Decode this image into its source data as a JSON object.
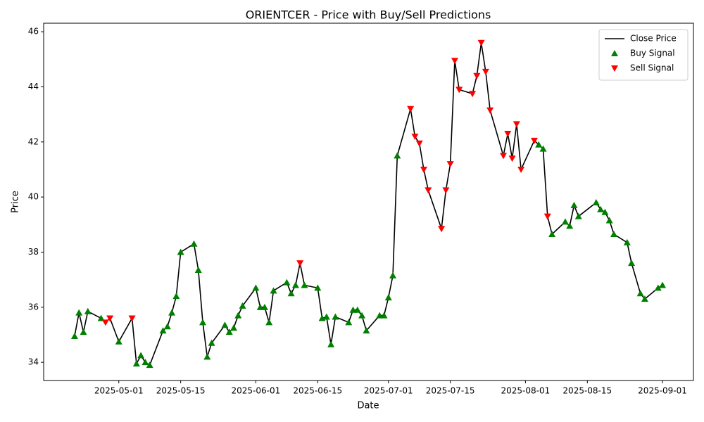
{
  "chart_data": {
    "type": "line",
    "title": "ORIENTCER - Price with Buy/Sell Predictions",
    "x_label": "Date",
    "y_label": "Price",
    "legend": "upper right",
    "xlim": [
      "2025-04-14",
      "2025-09-08"
    ],
    "xticks": [
      "2025-05-01",
      "2025-05-15",
      "2025-06-01",
      "2025-06-15",
      "2025-07-01",
      "2025-07-15",
      "2025-08-01",
      "2025-08-15",
      "2025-09-01"
    ],
    "ylim": [
      33.34,
      46.31
    ],
    "yticks": [
      34,
      36,
      38,
      40,
      42,
      44,
      46
    ],
    "x": [
      "2025-04-21",
      "2025-04-22",
      "2025-04-23",
      "2025-04-24",
      "2025-04-27",
      "2025-04-28",
      "2025-04-29",
      "2025-05-01",
      "2025-05-04",
      "2025-05-05",
      "2025-05-06",
      "2025-05-07",
      "2025-05-08",
      "2025-05-11",
      "2025-05-12",
      "2025-05-13",
      "2025-05-14",
      "2025-05-15",
      "2025-05-18",
      "2025-05-19",
      "2025-05-20",
      "2025-05-21",
      "2025-05-22",
      "2025-05-25",
      "2025-05-26",
      "2025-05-27",
      "2025-05-28",
      "2025-05-29",
      "2025-06-01",
      "2025-06-02",
      "2025-06-03",
      "2025-06-04",
      "2025-06-05",
      "2025-06-08",
      "2025-06-09",
      "2025-06-10",
      "2025-06-11",
      "2025-06-12",
      "2025-06-15",
      "2025-06-16",
      "2025-06-17",
      "2025-06-18",
      "2025-06-19",
      "2025-06-22",
      "2025-06-23",
      "2025-06-24",
      "2025-06-25",
      "2025-06-26",
      "2025-06-29",
      "2025-06-30",
      "2025-07-01",
      "2025-07-02",
      "2025-07-03",
      "2025-07-06",
      "2025-07-07",
      "2025-07-08",
      "2025-07-09",
      "2025-07-10",
      "2025-07-13",
      "2025-07-14",
      "2025-07-15",
      "2025-07-16",
      "2025-07-17",
      "2025-07-20",
      "2025-07-21",
      "2025-07-22",
      "2025-07-23",
      "2025-07-24",
      "2025-07-27",
      "2025-07-28",
      "2025-07-29",
      "2025-07-30",
      "2025-07-31",
      "2025-08-03",
      "2025-08-04",
      "2025-08-05",
      "2025-08-06",
      "2025-08-07",
      "2025-08-10",
      "2025-08-11",
      "2025-08-12",
      "2025-08-13",
      "2025-08-17",
      "2025-08-18",
      "2025-08-19",
      "2025-08-20",
      "2025-08-21",
      "2025-08-24",
      "2025-08-25",
      "2025-08-27",
      "2025-08-28",
      "2025-08-31",
      "2025-09-01"
    ],
    "series": [
      {
        "name": "Close Price",
        "kind": "line",
        "color": "#000000",
        "values": [
          34.95,
          35.8,
          35.1,
          35.85,
          35.6,
          35.45,
          35.6,
          34.75,
          35.6,
          33.95,
          34.25,
          34.0,
          33.9,
          35.15,
          35.3,
          35.8,
          36.4,
          38.0,
          38.3,
          37.35,
          35.45,
          34.2,
          34.7,
          35.35,
          35.1,
          35.25,
          35.7,
          36.05,
          36.7,
          36.0,
          36.0,
          35.45,
          36.6,
          36.9,
          36.5,
          36.8,
          37.6,
          36.8,
          36.7,
          35.6,
          35.65,
          34.65,
          35.65,
          35.45,
          35.9,
          35.9,
          35.7,
          35.15,
          35.7,
          35.7,
          36.35,
          37.15,
          41.5,
          43.2,
          42.2,
          41.95,
          41.0,
          40.25,
          38.85,
          40.25,
          41.2,
          44.95,
          43.9,
          43.75,
          44.4,
          45.6,
          44.55,
          43.15,
          41.5,
          42.3,
          41.4,
          42.65,
          41.0,
          42.05,
          41.9,
          41.75,
          39.3,
          38.65,
          39.1,
          38.95,
          39.7,
          39.3,
          39.8,
          39.55,
          39.45,
          39.15,
          38.65,
          38.35,
          37.6,
          36.5,
          36.3,
          36.7,
          36.8
        ]
      },
      {
        "name": "Buy Signal",
        "kind": "scatter",
        "marker": "triangle-up",
        "color": "#008000",
        "values": [
          34.95,
          35.8,
          35.1,
          35.85,
          35.6,
          null,
          null,
          34.75,
          null,
          33.95,
          34.25,
          34.0,
          33.9,
          35.15,
          35.3,
          35.8,
          36.4,
          38.0,
          38.3,
          37.35,
          35.45,
          34.2,
          34.7,
          35.35,
          35.1,
          35.25,
          35.7,
          36.05,
          36.7,
          36.0,
          36.0,
          35.45,
          36.6,
          36.9,
          36.5,
          36.8,
          null,
          36.8,
          36.7,
          35.6,
          35.65,
          34.65,
          35.65,
          35.45,
          35.9,
          35.9,
          35.7,
          35.15,
          35.7,
          35.7,
          36.35,
          37.15,
          41.5,
          null,
          null,
          null,
          null,
          null,
          null,
          null,
          null,
          null,
          null,
          null,
          null,
          null,
          null,
          null,
          null,
          null,
          null,
          null,
          null,
          null,
          41.9,
          41.75,
          null,
          38.65,
          39.1,
          38.95,
          39.7,
          39.3,
          39.8,
          39.55,
          39.45,
          39.15,
          38.65,
          38.35,
          37.6,
          36.5,
          36.3,
          36.7,
          36.8
        ]
      },
      {
        "name": "Sell Signal",
        "kind": "scatter",
        "marker": "triangle-down",
        "color": "#ff0000",
        "values": [
          null,
          null,
          null,
          null,
          null,
          35.45,
          35.6,
          null,
          35.6,
          null,
          null,
          null,
          null,
          null,
          null,
          null,
          null,
          null,
          null,
          null,
          null,
          null,
          null,
          null,
          null,
          null,
          null,
          null,
          null,
          null,
          null,
          null,
          null,
          null,
          null,
          null,
          37.6,
          null,
          null,
          null,
          null,
          null,
          null,
          null,
          null,
          null,
          null,
          null,
          null,
          null,
          null,
          null,
          null,
          43.2,
          42.2,
          41.95,
          41.0,
          40.25,
          38.85,
          40.25,
          41.2,
          44.95,
          43.9,
          43.75,
          44.4,
          45.6,
          44.55,
          43.15,
          41.5,
          42.3,
          41.4,
          42.65,
          41.0,
          42.05,
          null,
          null,
          39.3,
          null,
          null,
          null,
          null,
          null,
          null,
          null,
          null,
          null,
          null,
          null,
          null,
          null,
          null,
          null,
          null
        ]
      }
    ]
  }
}
